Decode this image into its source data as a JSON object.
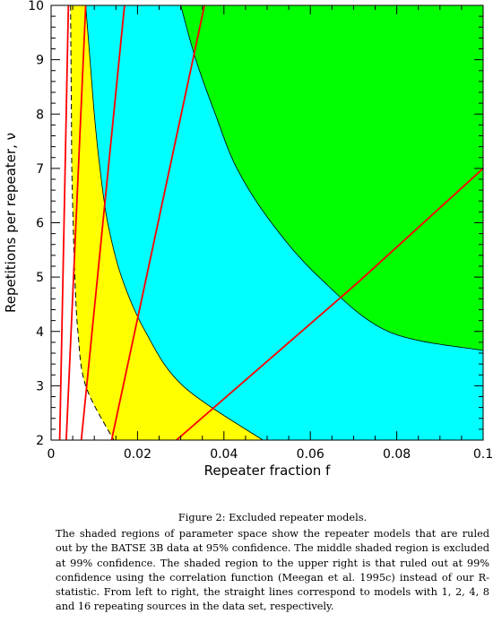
{
  "figure": {
    "caption_title": "Figure 2: Excluded repeater models.",
    "caption_text": "The shaded regions of parameter space show the repeater models that are ruled out by the BATSE 3B data at 95% confidence. The middle shaded region is excluded at 99% confidence. The shaded region to the upper right is that ruled out at 99% confidence using the correlation function (Meegan et al. 1995c) instead of our R-statistic. From left to right, the straight lines correspond to models with 1, 2, 4, 8 and 16 repeating sources in the data set, respectively."
  },
  "chart_data": {
    "type": "area",
    "xlabel": "Repeater fraction f",
    "ylabel": "Repetitions per repeater, ν",
    "xlim": [
      0,
      0.1
    ],
    "ylim": [
      2,
      10
    ],
    "x_ticks": [
      "0",
      "0.02",
      "0.04",
      "0.06",
      "0.08",
      "0.1"
    ],
    "y_ticks": [
      "2",
      "3",
      "4",
      "5",
      "6",
      "7",
      "8",
      "9",
      "10"
    ],
    "grid": false,
    "regions": [
      {
        "fill": "#ffff00",
        "boundary": [
          [
            0.0045,
            10
          ],
          [
            0.0046,
            9
          ],
          [
            0.0047,
            8
          ],
          [
            0.0048,
            7
          ],
          [
            0.0051,
            6
          ],
          [
            0.0055,
            5
          ],
          [
            0.0062,
            4
          ],
          [
            0.008,
            3
          ],
          [
            0.0145,
            2
          ]
        ]
      },
      {
        "fill": "#00ffff",
        "boundary": [
          [
            0.008,
            10
          ],
          [
            0.009,
            9
          ],
          [
            0.01,
            8
          ],
          [
            0.0113,
            7
          ],
          [
            0.0131,
            6
          ],
          [
            0.0163,
            5
          ],
          [
            0.0218,
            4
          ],
          [
            0.0305,
            3
          ],
          [
            0.049,
            2
          ]
        ]
      },
      {
        "fill": "#00ff00",
        "boundary": [
          [
            0.03,
            10
          ],
          [
            0.0335,
            9
          ],
          [
            0.038,
            8
          ],
          [
            0.043,
            7
          ],
          [
            0.051,
            6
          ],
          [
            0.062,
            5
          ],
          [
            0.078,
            4
          ],
          [
            0.1,
            3.65
          ]
        ]
      }
    ],
    "lines_color": "#ff0000",
    "lines": [
      {
        "points": [
          [
            0.002,
            2
          ],
          [
            0.004,
            10
          ]
        ]
      },
      {
        "points": [
          [
            0.0035,
            2
          ],
          [
            0.008,
            10
          ]
        ]
      },
      {
        "points": [
          [
            0.007,
            2
          ],
          [
            0.017,
            10
          ]
        ]
      },
      {
        "points": [
          [
            0.014,
            2
          ],
          [
            0.0355,
            10
          ]
        ]
      },
      {
        "points": [
          [
            0.029,
            2
          ],
          [
            0.071,
            4.9
          ],
          [
            0.1,
            7
          ]
        ]
      }
    ],
    "dashed_line": {
      "points": [
        [
          0.0045,
          10
        ],
        [
          0.0046,
          9
        ],
        [
          0.0047,
          8
        ],
        [
          0.0048,
          7
        ],
        [
          0.0051,
          6
        ],
        [
          0.0055,
          5
        ],
        [
          0.0062,
          4
        ],
        [
          0.008,
          3
        ],
        [
          0.0145,
          2
        ]
      ]
    }
  }
}
